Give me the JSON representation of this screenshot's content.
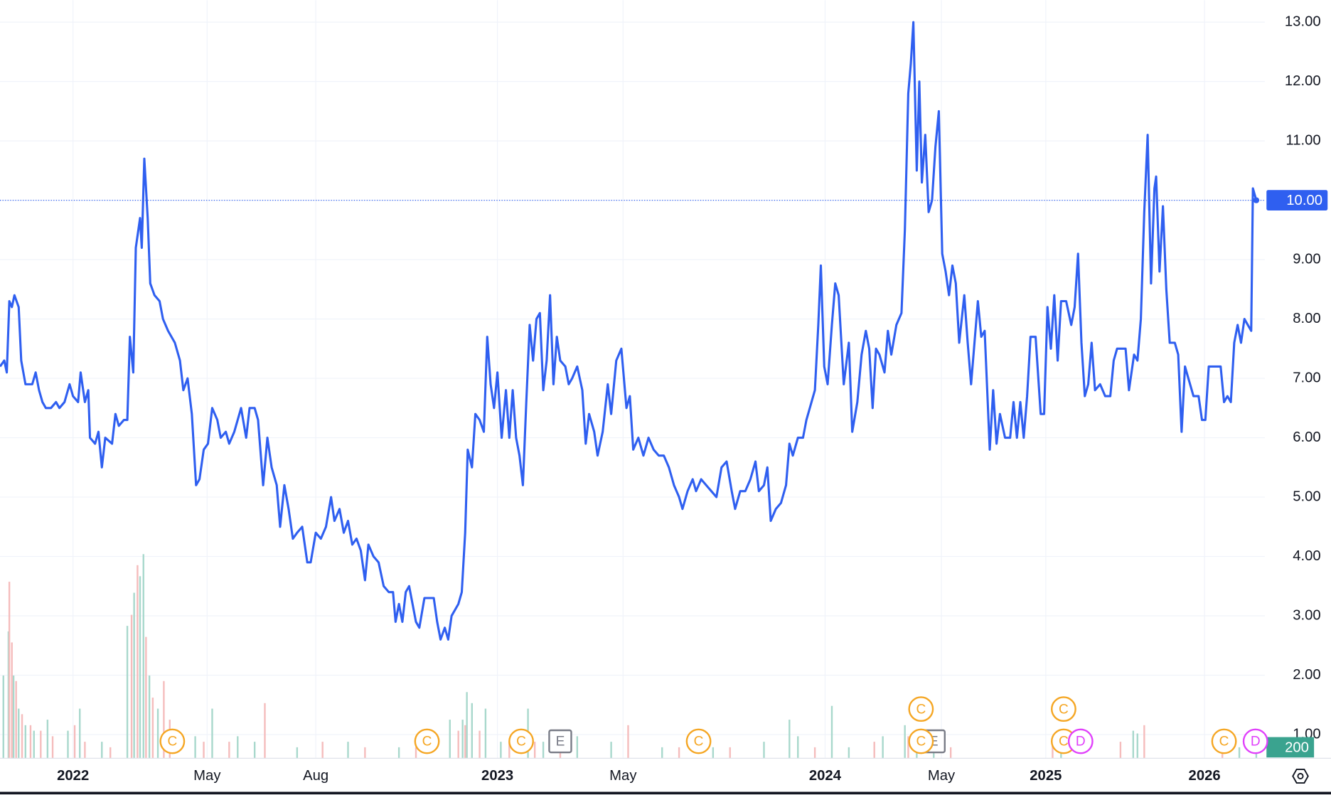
{
  "chart_data": {
    "type": "line",
    "xlim": [
      0,
      1490
    ],
    "ylim": [
      0.6,
      13.37
    ],
    "grid": true,
    "xticks": [
      {
        "value": 86,
        "label": "2022"
      },
      {
        "value": 244,
        "label": "May"
      },
      {
        "value": 372,
        "label": "Aug"
      },
      {
        "value": 586,
        "label": "2023"
      },
      {
        "value": 734,
        "label": "May"
      },
      {
        "value": 972,
        "label": "2024"
      },
      {
        "value": 1109,
        "label": "May"
      },
      {
        "value": 1232,
        "label": "2025"
      },
      {
        "value": 1419,
        "label": "2026"
      }
    ],
    "yticks": [
      {
        "value": 1,
        "label": "1.00"
      },
      {
        "value": 2,
        "label": "2.00"
      },
      {
        "value": 3,
        "label": "3.00"
      },
      {
        "value": 4,
        "label": "4.00"
      },
      {
        "value": 5,
        "label": "5.00"
      },
      {
        "value": 6,
        "label": "6.00"
      },
      {
        "value": 7,
        "label": "7.00"
      },
      {
        "value": 8,
        "label": "8.00"
      },
      {
        "value": 9,
        "label": "9.00"
      },
      {
        "value": 10,
        "label": "10.00"
      },
      {
        "value": 11,
        "label": "11.00"
      },
      {
        "value": 12,
        "label": "12.00"
      },
      {
        "value": 13,
        "label": "13.00"
      }
    ],
    "last_price": {
      "value": 10,
      "label": "10.00"
    },
    "series": [
      {
        "color": "#2f5ff0",
        "x": [
          0,
          5,
          8,
          11,
          14,
          17,
          22,
          25,
          30,
          38,
          42,
          46,
          50,
          54,
          60,
          66,
          70,
          76,
          82,
          86,
          92,
          95,
          100,
          104,
          106,
          112,
          116,
          120,
          124,
          132,
          136,
          140,
          146,
          150,
          153,
          157,
          160,
          165,
          167,
          170,
          174,
          177,
          182,
          188,
          192,
          198,
          206,
          212,
          216,
          221,
          226,
          231,
          235,
          240,
          245,
          250,
          256,
          260,
          266,
          270,
          276,
          280,
          284,
          290,
          294,
          300,
          304,
          310,
          315,
          320,
          326,
          330,
          335,
          340,
          345,
          350,
          356,
          362,
          366,
          372,
          378,
          384,
          390,
          394,
          400,
          405,
          410,
          415,
          420,
          425,
          430,
          434,
          440,
          446,
          452,
          458,
          463,
          466,
          470,
          474,
          478,
          482,
          486,
          490,
          494,
          500,
          506,
          511,
          515,
          519,
          524,
          528,
          532,
          536,
          540,
          544,
          548,
          551,
          556,
          560,
          565,
          570,
          574,
          578,
          582,
          586,
          591,
          596,
          600,
          604,
          608,
          612,
          616,
          620,
          624,
          628,
          632,
          636,
          640,
          644,
          648,
          652,
          656,
          660,
          666,
          670,
          674,
          680,
          686,
          690,
          694,
          700,
          704,
          710,
          716,
          720,
          726,
          732,
          738,
          742,
          746,
          752,
          758,
          764,
          770,
          776,
          782,
          788,
          794,
          800,
          804,
          810,
          816,
          820,
          826,
          832,
          838,
          844,
          850,
          856,
          862,
          866,
          872,
          878,
          884,
          890,
          894,
          900,
          904,
          908,
          914,
          920,
          926,
          930,
          934,
          940,
          946,
          950,
          956,
          960,
          964,
          967,
          971,
          975,
          980,
          984,
          988,
          994,
          1000,
          1004,
          1010,
          1015,
          1020,
          1024,
          1028,
          1032,
          1036,
          1042,
          1046,
          1050,
          1056,
          1062,
          1066,
          1070,
          1073,
          1076,
          1080,
          1083,
          1086,
          1090,
          1094,
          1098,
          1102,
          1106,
          1110,
          1114,
          1118,
          1122,
          1126,
          1130,
          1136,
          1140,
          1144,
          1148,
          1152,
          1156,
          1160,
          1166,
          1170,
          1174,
          1178,
          1184,
          1190,
          1194,
          1198,
          1202,
          1206,
          1210,
          1214,
          1220,
          1226,
          1230,
          1234,
          1238,
          1242,
          1246,
          1250,
          1256,
          1262,
          1266,
          1270,
          1274,
          1278,
          1282,
          1286,
          1290,
          1296,
          1302,
          1308,
          1312,
          1316,
          1320,
          1326,
          1330,
          1336,
          1340,
          1344,
          1348,
          1352,
          1356,
          1360,
          1362,
          1366,
          1370,
          1374,
          1378,
          1384,
          1388,
          1392,
          1396,
          1400,
          1406,
          1412,
          1416,
          1420,
          1424,
          1430,
          1438,
          1442,
          1446,
          1450,
          1454,
          1458,
          1462,
          1466,
          1470,
          1474,
          1476,
          1480
        ],
        "values": [
          7.2,
          7.3,
          7.1,
          8.3,
          8.2,
          8.4,
          8.2,
          7.3,
          6.9,
          6.9,
          7.1,
          6.8,
          6.6,
          6.5,
          6.5,
          6.6,
          6.5,
          6.6,
          6.9,
          6.7,
          6.6,
          7.1,
          6.6,
          6.8,
          6.0,
          5.9,
          6.1,
          5.5,
          6.0,
          5.9,
          6.4,
          6.2,
          6.3,
          6.3,
          7.7,
          7.1,
          9.2,
          9.7,
          9.2,
          10.7,
          9.7,
          8.6,
          8.4,
          8.3,
          8.0,
          7.8,
          7.6,
          7.3,
          6.8,
          7.0,
          6.4,
          5.2,
          5.3,
          5.8,
          5.9,
          6.5,
          6.3,
          6.0,
          6.1,
          5.9,
          6.1,
          6.3,
          6.5,
          6.0,
          6.5,
          6.5,
          6.3,
          5.2,
          6.0,
          5.5,
          5.2,
          4.5,
          5.2,
          4.8,
          4.3,
          4.4,
          4.5,
          3.9,
          3.9,
          4.4,
          4.3,
          4.5,
          5.0,
          4.6,
          4.8,
          4.4,
          4.6,
          4.2,
          4.3,
          4.1,
          3.6,
          4.2,
          4.0,
          3.9,
          3.5,
          3.4,
          3.4,
          2.9,
          3.2,
          2.9,
          3.4,
          3.5,
          3.2,
          2.9,
          2.8,
          3.3,
          3.3,
          3.3,
          2.9,
          2.6,
          2.8,
          2.6,
          3.0,
          3.1,
          3.2,
          3.4,
          4.4,
          5.8,
          5.5,
          6.4,
          6.3,
          6.1,
          7.7,
          6.9,
          6.5,
          7.1,
          6.0,
          6.8,
          6.0,
          6.8,
          6.0,
          5.7,
          5.2,
          6.6,
          7.9,
          7.3,
          8.0,
          8.1,
          6.8,
          7.3,
          8.4,
          6.9,
          7.7,
          7.3,
          7.2,
          6.9,
          7.0,
          7.2,
          6.8,
          5.9,
          6.4,
          6.1,
          5.7,
          6.1,
          6.9,
          6.4,
          7.3,
          7.5,
          6.5,
          6.7,
          5.8,
          6.0,
          5.7,
          6.0,
          5.8,
          5.7,
          5.7,
          5.5,
          5.2,
          5.0,
          4.8,
          5.1,
          5.3,
          5.1,
          5.3,
          5.2,
          5.1,
          5.0,
          5.5,
          5.6,
          5.1,
          4.8,
          5.1,
          5.1,
          5.3,
          5.6,
          5.1,
          5.2,
          5.5,
          4.6,
          4.8,
          4.9,
          5.2,
          5.9,
          5.7,
          6.0,
          6.0,
          6.3,
          6.6,
          6.8,
          7.9,
          8.9,
          7.2,
          6.9,
          7.9,
          8.6,
          8.4,
          6.9,
          7.6,
          6.1,
          6.6,
          7.4,
          7.8,
          7.5,
          6.5,
          7.5,
          7.4,
          7.1,
          7.8,
          7.4,
          7.9,
          8.1,
          9.5,
          11.8,
          12.3,
          13.0,
          10.5,
          12.0,
          10.3,
          11.1,
          9.8,
          10.0,
          10.9,
          11.5,
          9.1,
          8.8,
          8.4,
          8.9,
          8.6,
          7.6,
          8.4,
          7.6,
          6.9,
          7.6,
          8.3,
          7.7,
          7.8,
          5.8,
          6.8,
          5.9,
          6.4,
          6.0,
          6.0,
          6.6,
          6.0,
          6.6,
          6.0,
          6.7,
          7.7,
          7.7,
          6.4,
          6.4,
          8.2,
          7.5,
          8.4,
          7.3,
          8.3,
          8.3,
          7.9,
          8.2,
          9.1,
          7.6,
          6.7,
          6.9,
          7.6,
          6.8,
          6.9,
          6.7,
          6.7,
          7.3,
          7.5,
          7.5,
          7.5,
          6.8,
          7.4,
          7.3,
          8.0,
          9.8,
          11.1,
          8.6,
          10.2,
          10.4,
          8.8,
          9.9,
          8.5,
          7.6,
          7.6,
          7.4,
          6.1,
          7.2,
          7.0,
          6.7,
          6.7,
          6.3,
          6.3,
          7.2,
          7.2,
          7.2,
          6.6,
          6.7,
          6.6,
          7.6,
          7.9,
          7.6,
          8.0,
          7.9,
          7.8,
          10.2,
          10.0
        ]
      }
    ],
    "volume": {
      "ylim": [
        0,
        4000
      ],
      "last_value": 200,
      "series": [
        {
          "color": "#a8d8cc",
          "x": [
            4,
            10,
            16,
            22,
            30,
            40,
            56,
            80,
            94,
            120,
            150,
            158,
            165,
            169,
            176,
            186,
            230,
            250,
            280,
            300,
            350,
            410,
            470,
            530,
            545,
            550,
            556,
            572,
            590,
            622,
            640,
            680,
            720,
            780,
            840,
            900,
            930,
            940,
            980,
            1000,
            1040,
            1066,
            1080,
            1100,
            1250,
            1335,
            1340,
            1460,
            1480
          ],
          "values": [
            1500,
            2300,
            1500,
            900,
            600,
            500,
            700,
            500,
            900,
            300,
            2400,
            3000,
            3300,
            3700,
            1500,
            900,
            400,
            900,
            400,
            300,
            200,
            300,
            200,
            700,
            700,
            1200,
            1000,
            900,
            300,
            900,
            300,
            400,
            300,
            200,
            200,
            300,
            700,
            400,
            950,
            200,
            400,
            600,
            300,
            200,
            200,
            500,
            450,
            200,
            200
          ]
        },
        {
          "color": "#f5bcbc",
          "x": [
            11,
            14,
            19,
            26,
            36,
            48,
            62,
            88,
            100,
            130,
            155,
            162,
            172,
            180,
            193,
            200,
            240,
            270,
            312,
            380,
            430,
            490,
            540,
            548,
            565,
            600,
            630,
            660,
            740,
            800,
            860,
            960,
            1030,
            1070,
            1120,
            1240,
            1320,
            1348,
            1440
          ],
          "values": [
            3200,
            2100,
            1400,
            800,
            600,
            500,
            400,
            600,
            300,
            200,
            2600,
            3500,
            2200,
            1100,
            1400,
            700,
            300,
            300,
            1000,
            300,
            200,
            200,
            500,
            600,
            500,
            300,
            300,
            200,
            600,
            200,
            200,
            200,
            300,
            400,
            200,
            300,
            300,
            600,
            200
          ]
        }
      ]
    },
    "events": [
      {
        "x": 203,
        "label": "C"
      },
      {
        "x": 503,
        "label": "C"
      },
      {
        "x": 614,
        "label": "C"
      },
      {
        "x": 660,
        "label": "E"
      },
      {
        "x": 823,
        "label": "C"
      },
      {
        "x": 1100,
        "label": "E"
      },
      {
        "x": 1085,
        "label": "C"
      },
      {
        "x": 1085,
        "label": "C"
      },
      {
        "x": 1253,
        "label": "C"
      },
      {
        "x": 1253,
        "label": "C"
      },
      {
        "x": 1273,
        "label": "D"
      },
      {
        "x": 1442,
        "label": "C"
      },
      {
        "x": 1479,
        "label": "D"
      }
    ]
  }
}
